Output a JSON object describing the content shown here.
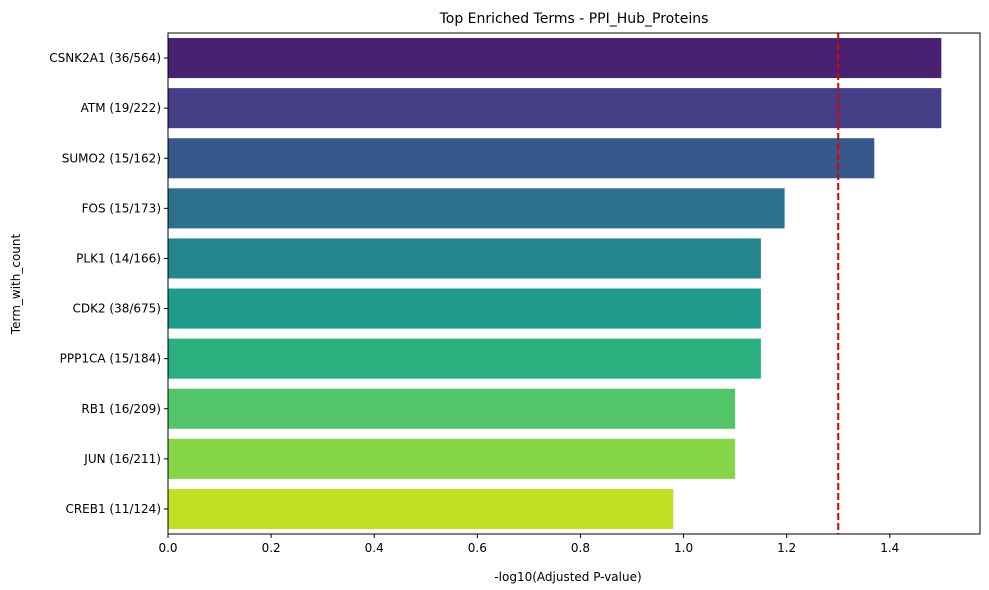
{
  "chart_data": {
    "type": "bar",
    "orientation": "horizontal",
    "title": "Top Enriched Terms - PPI_Hub_Proteins",
    "xlabel": "-log10(Adjusted P-value)",
    "ylabel": "Term_with_count",
    "categories": [
      "CSNK2A1 (36/564)",
      "ATM (19/222)",
      "SUMO2 (15/162)",
      "FOS (15/173)",
      "PLK1 (14/166)",
      "CDK2 (38/675)",
      "PPP1CA (15/184)",
      "RB1 (16/209)",
      "JUN (16/211)",
      "CREB1 (11/124)"
    ],
    "values": [
      1.5,
      1.5,
      1.37,
      1.196,
      1.15,
      1.15,
      1.15,
      1.1,
      1.1,
      0.98
    ],
    "colors": [
      "#482173",
      "#433e85",
      "#38588c",
      "#2d708e",
      "#25858e",
      "#1e9b8a",
      "#2ab07f",
      "#52c569",
      "#86d549",
      "#c2df23"
    ],
    "xlim": [
      0,
      1.575
    ],
    "xticks": [
      0.0,
      0.2,
      0.4,
      0.6,
      0.8,
      1.0,
      1.2,
      1.4
    ],
    "xtick_labels": [
      "0.0",
      "0.2",
      "0.4",
      "0.6",
      "0.8",
      "1.0",
      "1.2",
      "1.4"
    ],
    "threshold": {
      "value": 1.3,
      "color": "#e00000",
      "style": "dashed"
    },
    "grid": false,
    "legend": "none"
  }
}
